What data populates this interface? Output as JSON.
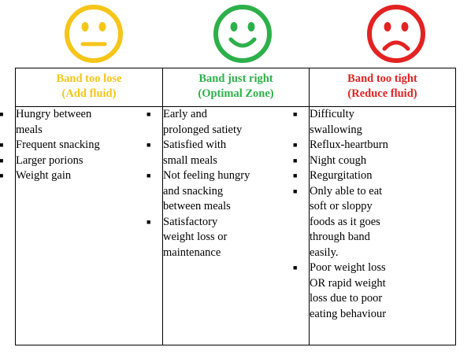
{
  "columns": [
    {
      "face": "neutral-face",
      "face_color": "#f5c518",
      "heading_line1": "Band too lose",
      "heading_line2": "(Add fluid)",
      "items": [
        [
          "Hungry between",
          "meals"
        ],
        [
          "Frequent snacking"
        ],
        [
          "Larger porions"
        ],
        [
          "Weight gain"
        ]
      ]
    },
    {
      "face": "smiling-face",
      "face_color": "#2db04a",
      "heading_line1": "Band just right",
      "heading_line2": "(Optimal Zone)",
      "items": [
        [
          "Early and",
          "prolonged satiety"
        ],
        [
          "Satisfied with",
          "small meals"
        ],
        [
          "Not feeling hungry",
          "and snacking",
          "between meals"
        ],
        [
          "Satisfactory",
          "weight loss or",
          "maintenance"
        ]
      ]
    },
    {
      "face": "sad-face",
      "face_color": "#e32222",
      "heading_line1": "Band too tight",
      "heading_line2": "(Reduce fluid)",
      "items": [
        [
          "Difficulty",
          "swallowing"
        ],
        [
          "Reflux-heartburn"
        ],
        [
          "Night cough"
        ],
        [
          "Regurgitation"
        ],
        [
          "Only able to eat",
          "soft or sloppy",
          "foods as it goes",
          "through band",
          "easily."
        ],
        [
          "Poor weight loss",
          "OR rapid weight",
          "loss due to poor",
          "eating behaviour"
        ]
      ]
    }
  ]
}
